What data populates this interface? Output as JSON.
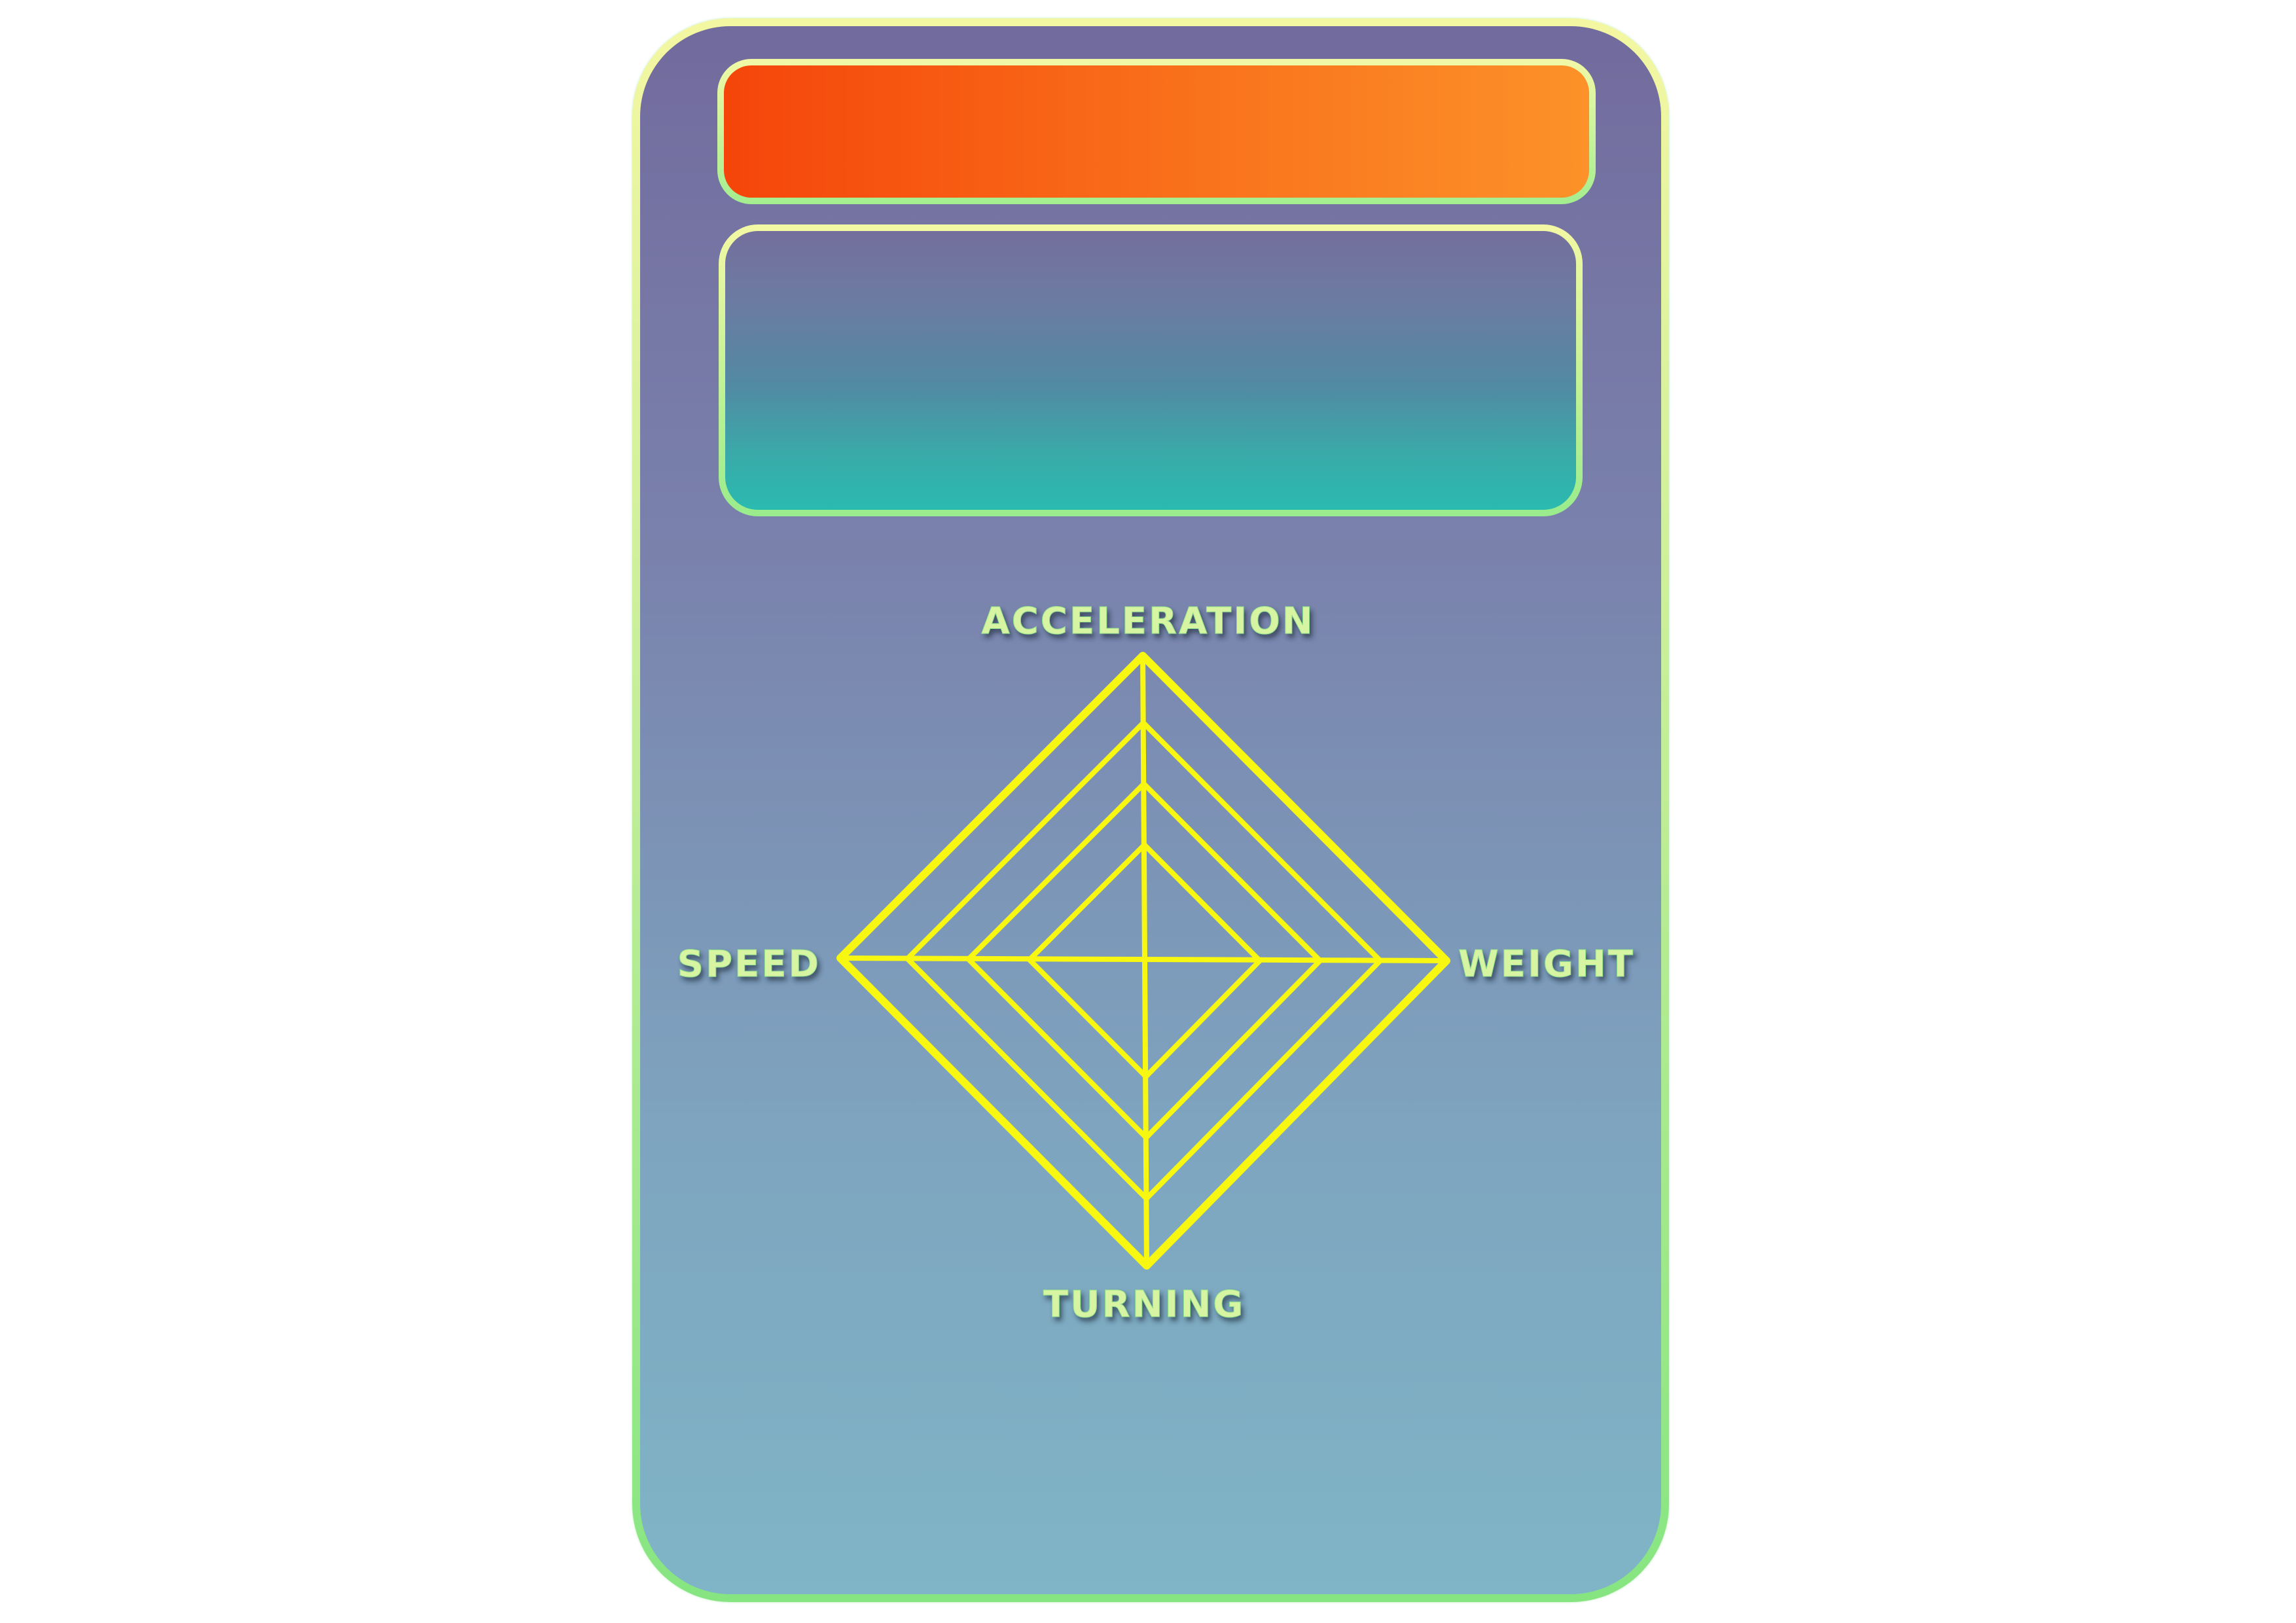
{
  "card": {
    "name_bar_text": "",
    "info_panel_text": ""
  },
  "colors": {
    "card_top": "#726b9d",
    "card_bottom": "#7fb5c6",
    "border_top": "#f4f7a2",
    "border_bottom": "#86e581",
    "name_bar_left": "#f5450a",
    "name_bar_right": "#fc9229",
    "info_panel_bottom": "#2abab0",
    "chart_lines": "#f7f711",
    "label_fill": "#d7f4a3"
  },
  "chart_data": {
    "type": "radar",
    "axes": [
      "ACCELERATION",
      "WEIGHT",
      "TURNING",
      "SPEED"
    ],
    "rings": 4,
    "ring_levels": [
      0.38,
      0.58,
      0.78,
      1.0
    ],
    "series": [],
    "labels": {
      "top": "ACCELERATION",
      "right": "WEIGHT",
      "bottom": "TURNING",
      "left": "SPEED"
    }
  }
}
